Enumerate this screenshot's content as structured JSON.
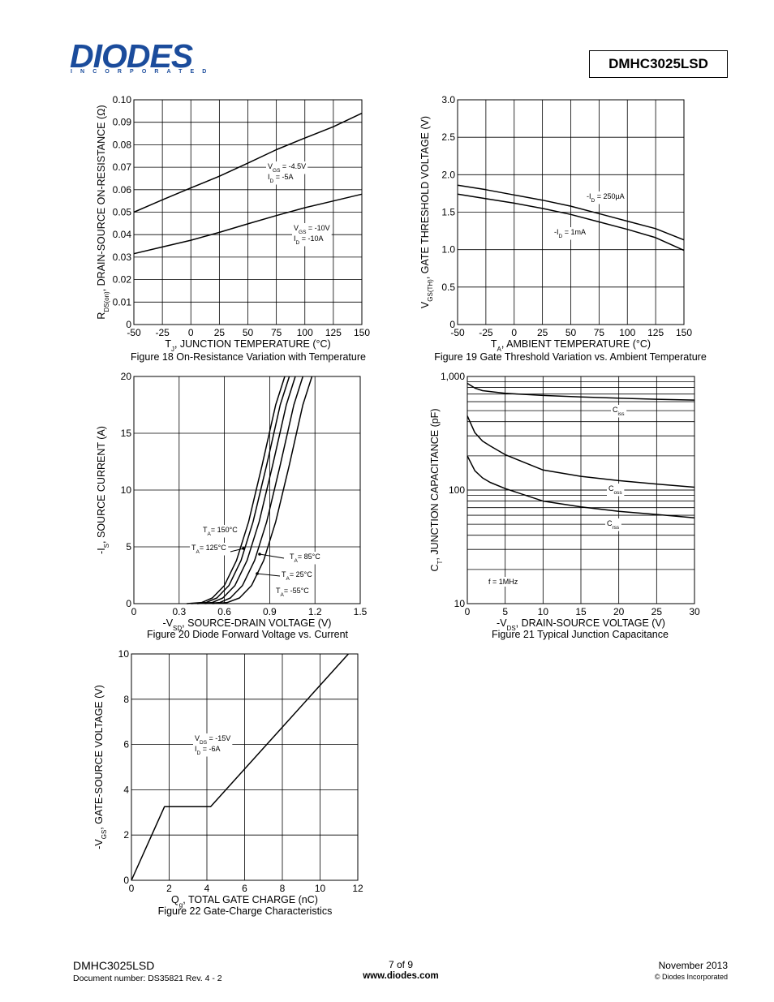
{
  "header": {
    "logo": "DIODES",
    "logo_sub": "INCORPORATED",
    "part_number": "DMHC3025LSD"
  },
  "colors": {
    "logo_blue": "#1b4c9c",
    "line": "#000000"
  },
  "chart_data": [
    {
      "id": "fig18",
      "type": "line",
      "caption": "Figure 18 On-Resistance Variation with Temperature",
      "xlabel": "T_J, JUNCTION TEMPERATURE (°C)",
      "ylabel": "R_DS(on), DRAIN-SOURCE ON-RESISTANCE (Ω)",
      "xlim": [
        -50,
        150
      ],
      "ylim": [
        0,
        0.1
      ],
      "xticks": [
        "-50",
        "-25",
        "0",
        "25",
        "50",
        "75",
        "100",
        "125",
        "150"
      ],
      "yticks": [
        "0",
        "0.01",
        "0.02",
        "0.03",
        "0.04",
        "0.05",
        "0.06",
        "0.07",
        "0.08",
        "0.09",
        "0.10"
      ],
      "series": [
        {
          "label": "V_GS = -4.5V, I_D = -5A",
          "x": [
            -50,
            -25,
            0,
            25,
            50,
            75,
            100,
            125,
            150
          ],
          "y": [
            0.05,
            0.0555,
            0.0608,
            0.066,
            0.0718,
            0.0778,
            0.083,
            0.088,
            0.094
          ]
        },
        {
          "label": "V_GS = -10V, I_D = -10A",
          "x": [
            -50,
            -25,
            0,
            25,
            50,
            75,
            100,
            125,
            150
          ],
          "y": [
            0.0315,
            0.0345,
            0.0375,
            0.041,
            0.0448,
            0.0485,
            0.052,
            0.055,
            0.058
          ]
        }
      ],
      "annotations": {
        "a1": {
          "l1_sym": "V",
          "l1_sub": "GS",
          "l1_rest": " = -4.5V",
          "l2_sym": "I",
          "l2_sub": "D",
          "l2_rest": " = -5A"
        },
        "a2": {
          "l1_sym": "V",
          "l1_sub": "GS",
          "l1_rest": " = -10V",
          "l2_sym": "I",
          "l2_sub": "D",
          "l2_rest": " = -10A"
        }
      },
      "grid": true
    },
    {
      "id": "fig19",
      "type": "line",
      "caption": "Figure 19 Gate Threshold Variation vs. Ambient Temperature",
      "xlabel": "T_A, AMBIENT TEMPERATURE (°C)",
      "ylabel": "V_GS(TH), GATE THRESHOLD VOLTAGE (V)",
      "xlim": [
        -50,
        150
      ],
      "ylim": [
        0,
        3.0
      ],
      "xticks": [
        "-50",
        "-25",
        "0",
        "25",
        "50",
        "75",
        "100",
        "125",
        "150"
      ],
      "yticks": [
        "0",
        "0.5",
        "1.0",
        "1.5",
        "2.0",
        "2.5",
        "3.0"
      ],
      "series": [
        {
          "label": "-I_D = 250µA",
          "x": [
            -50,
            -25,
            0,
            25,
            50,
            75,
            100,
            125,
            150
          ],
          "y": [
            1.86,
            1.8,
            1.73,
            1.66,
            1.58,
            1.48,
            1.38,
            1.28,
            1.13
          ]
        },
        {
          "label": "-I_D = 1mA",
          "x": [
            -50,
            -25,
            0,
            25,
            50,
            75,
            100,
            125,
            150
          ],
          "y": [
            1.74,
            1.68,
            1.62,
            1.55,
            1.47,
            1.37,
            1.27,
            1.16,
            0.99
          ]
        }
      ],
      "annotations": {
        "a1": {
          "l1_sym": "-I",
          "l1_sub": "D",
          "l1_rest": " = 250µA"
        },
        "a2": {
          "l1_sym": "-I",
          "l1_sub": "D",
          "l1_rest": " = 1mA"
        }
      },
      "grid": true
    },
    {
      "id": "fig20",
      "type": "line",
      "caption": "Figure 20 Diode Forward Voltage vs. Current",
      "xlabel": "-V_SD, SOURCE-DRAIN VOLTAGE (V)",
      "ylabel": "-I_S, SOURCE CURRENT (A)",
      "xlim": [
        0,
        1.5
      ],
      "ylim": [
        0,
        20
      ],
      "xticks": [
        "0",
        "0.3",
        "0.6",
        "0.9",
        "1.2",
        "1.5"
      ],
      "yticks": [
        "0",
        "5",
        "10",
        "15",
        "20"
      ],
      "series": [
        {
          "label": "T_A= 150°C",
          "x": [
            0.35,
            0.45,
            0.52,
            0.6,
            0.68,
            0.76,
            0.85,
            0.94,
            1.0
          ],
          "y": [
            0,
            0.1,
            0.5,
            1.6,
            3.8,
            7.2,
            12.2,
            17.5,
            20
          ]
        },
        {
          "label": "T_A= 125°C",
          "x": [
            0.38,
            0.48,
            0.55,
            0.63,
            0.71,
            0.79,
            0.88,
            0.97,
            1.03
          ],
          "y": [
            0,
            0.1,
            0.5,
            1.6,
            3.8,
            7.2,
            12.2,
            17.5,
            20
          ]
        },
        {
          "label": "T_A= 85°C",
          "x": [
            0.42,
            0.52,
            0.59,
            0.67,
            0.75,
            0.83,
            0.92,
            1.01,
            1.07
          ],
          "y": [
            0,
            0.1,
            0.5,
            1.6,
            3.8,
            7.2,
            12.2,
            17.5,
            20
          ]
        },
        {
          "label": "T_A= 25°C",
          "x": [
            0.47,
            0.57,
            0.64,
            0.72,
            0.8,
            0.88,
            0.97,
            1.06,
            1.12
          ],
          "y": [
            0,
            0.1,
            0.5,
            1.6,
            3.8,
            7.2,
            12.2,
            17.5,
            20
          ]
        },
        {
          "label": "T_A= -55°C",
          "x": [
            0.52,
            0.62,
            0.7,
            0.78,
            0.86,
            0.94,
            1.03,
            1.12,
            1.18
          ],
          "y": [
            0,
            0.1,
            0.5,
            1.6,
            3.8,
            7.2,
            12.2,
            17.5,
            20
          ]
        }
      ],
      "annotations": {
        "a1": {
          "l1_sym": "T",
          "l1_sub": "A",
          "l1_rest": "= 150°C"
        },
        "a2": {
          "l1_sym": "T",
          "l1_sub": "A",
          "l1_rest": "= 125°C"
        },
        "a3": {
          "l1_sym": "T",
          "l1_sub": "A",
          "l1_rest": "= 85°C"
        },
        "a4": {
          "l1_sym": "T",
          "l1_sub": "A",
          "l1_rest": "= 25°C"
        },
        "a5": {
          "l1_sym": "T",
          "l1_sub": "A",
          "l1_rest": "= -55°C"
        }
      },
      "grid": true
    },
    {
      "id": "fig21",
      "type": "line",
      "caption": "Figure 21 Typical Junction Capacitance",
      "xlabel": "-V_DS, DRAIN-SOURCE VOLTAGE (V)",
      "ylabel": "C_T, JUNCTION CAPACITANCE (pF)",
      "xlim": [
        0,
        30
      ],
      "ylim": [
        10,
        1000
      ],
      "yscale": "log",
      "xticks": [
        "0",
        "5",
        "10",
        "15",
        "20",
        "25",
        "30"
      ],
      "yticks": [
        "10",
        "100",
        "1,000"
      ],
      "series": [
        {
          "label": "C_iss",
          "x": [
            0,
            1,
            2,
            5,
            10,
            15,
            20,
            25,
            30
          ],
          "y": [
            870,
            790,
            750,
            710,
            680,
            660,
            645,
            630,
            620
          ]
        },
        {
          "label": "C_oss",
          "x": [
            0,
            1,
            2,
            3,
            5,
            10,
            15,
            20,
            25,
            30
          ],
          "y": [
            450,
            320,
            270,
            245,
            205,
            150,
            132,
            121,
            113,
            106
          ]
        },
        {
          "label": "C_rss",
          "x": [
            0,
            1,
            2,
            3,
            5,
            10,
            15,
            20,
            25,
            30
          ],
          "y": [
            200,
            148,
            128,
            117,
            103,
            80,
            71,
            65,
            61,
            57
          ]
        }
      ],
      "annotations": {
        "a1": {
          "l1_sym": "C",
          "l1_sub": "iss"
        },
        "a2": {
          "l1_sym": "C",
          "l1_sub": "oss"
        },
        "a3": {
          "l1_sym": "C",
          "l1_sub": "rss"
        },
        "a4": {
          "l1_sym": "f = 1MHz"
        }
      },
      "grid": true
    },
    {
      "id": "fig22",
      "type": "line",
      "caption": "Figure 22 Gate-Charge Characteristics",
      "xlabel": "Q_g, TOTAL GATE CHARGE (nC)",
      "ylabel": "-V_GS, GATE-SOURCE VOLTAGE (V)",
      "xlim": [
        0,
        12
      ],
      "ylim": [
        0,
        10
      ],
      "xticks": [
        "0",
        "2",
        "4",
        "6",
        "8",
        "10",
        "12"
      ],
      "yticks": [
        "0",
        "2",
        "4",
        "6",
        "8",
        "10"
      ],
      "series": [
        {
          "label": "V_DS = -15V, I_D = -6A",
          "x": [
            0,
            1.75,
            4.2,
            11.5
          ],
          "y": [
            0,
            3.25,
            3.25,
            10
          ]
        }
      ],
      "annotations": {
        "a1": {
          "l1_sym": "V",
          "l1_sub": "DS",
          "l1_rest": " = -15V",
          "l2_sym": "I",
          "l2_sub": "D",
          "l2_rest": " = -6A"
        }
      },
      "grid": true
    }
  ],
  "labels": {
    "fig18": {
      "x_pre": "T",
      "x_sub": "J",
      "x_post": ", JUNCTION TEMPERATURE (°C)",
      "y_pre": "R",
      "y_sub": "DS(on)",
      "y_post": ", DRAIN-SOURCE ON-RESISTANCE (Ω)"
    },
    "fig19": {
      "x_pre": "T",
      "x_sub": "A",
      "x_post": ", AMBIENT TEMPERATURE (°C)",
      "y_pre": "V",
      "y_sub": "GS(TH)",
      "y_post": ", GATE THRESHOLD VOLTAGE (V)"
    },
    "fig20": {
      "x_pre": "-V",
      "x_sub": "SD",
      "x_post": ", SOURCE-DRAIN VOLTAGE (V)",
      "y_pre": "-I",
      "y_sub": "S",
      "y_post": ", SOURCE CURRENT (A)"
    },
    "fig21": {
      "x_pre": "-V",
      "x_sub": "DS",
      "x_post": ", DRAIN-SOURCE VOLTAGE (V)",
      "y_pre": "C",
      "y_sub": "T",
      "y_post": ", JUNCTION CAPACITANCE (pF)"
    },
    "fig22": {
      "x_pre": "Q",
      "x_sub": "g",
      "x_post": ", TOTAL GATE CHARGE (nC)",
      "y_pre": "-V",
      "y_sub": "GS",
      "y_post": ", GATE-SOURCE VOLTAGE (V)"
    }
  },
  "footer": {
    "part": "DMHC3025LSD",
    "doc_number": "Document number: DS35821 Rev. 4 - 2",
    "page": "7 of 9",
    "url": "www.diodes.com",
    "date": "November 2013",
    "copyright": "© Diodes Incorporated"
  }
}
